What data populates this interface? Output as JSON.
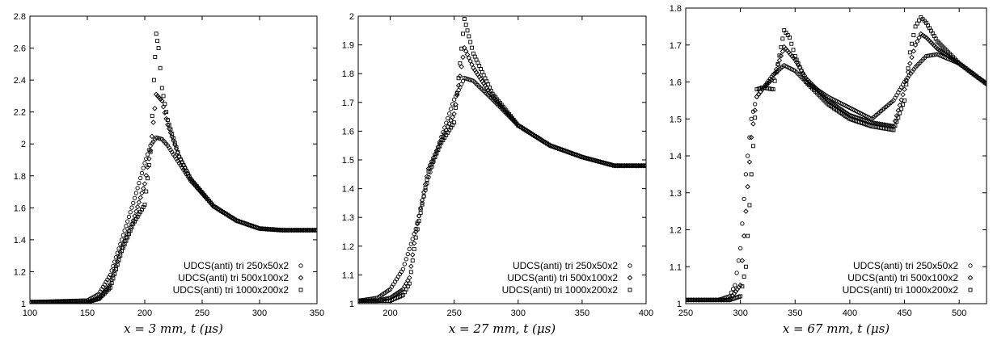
{
  "chart_data": [
    {
      "type": "scatter",
      "xlabel": "x = 3 mm,  t (μs)",
      "xlim": [
        100,
        350
      ],
      "ylim": [
        1,
        2.8
      ],
      "xticks": [
        "100",
        "150",
        "200",
        "250",
        "300",
        "350"
      ],
      "yticks": [
        "1",
        "1.2",
        "1.4",
        "1.6",
        "1.8",
        "2",
        "2.2",
        "2.4",
        "2.6",
        "2.8"
      ],
      "legend_position": "bottom-right",
      "series": [
        {
          "name": "UDCS(anti) tri 250x50x2",
          "marker": "circle",
          "x": [
            100,
            150,
            160,
            170,
            180,
            190,
            200,
            205,
            210,
            215,
            220,
            230,
            240,
            260,
            280,
            300,
            320,
            350
          ],
          "y": [
            1.01,
            1.02,
            1.06,
            1.18,
            1.4,
            1.63,
            1.88,
            1.99,
            2.04,
            2.03,
            1.99,
            1.88,
            1.77,
            1.61,
            1.52,
            1.47,
            1.46,
            1.46
          ]
        },
        {
          "name": "UDCS(anti) tri 500x100x2",
          "marker": "diamond",
          "x": [
            100,
            150,
            160,
            170,
            180,
            190,
            200,
            205,
            210,
            215,
            220,
            230,
            240,
            260,
            280,
            300,
            320,
            350
          ],
          "y": [
            1.01,
            1.01,
            1.03,
            1.12,
            1.35,
            1.52,
            1.75,
            1.96,
            2.31,
            2.27,
            2.12,
            1.92,
            1.78,
            1.61,
            1.52,
            1.47,
            1.46,
            1.46
          ]
        },
        {
          "name": "UDCS(anti) tri 1000x200x2",
          "marker": "square",
          "x": [
            100,
            150,
            160,
            170,
            180,
            190,
            200,
            205,
            208,
            210,
            212,
            215,
            220,
            230,
            240,
            260,
            280,
            300,
            320,
            350
          ],
          "y": [
            1.01,
            1.01,
            1.03,
            1.1,
            1.33,
            1.5,
            1.62,
            1.95,
            2.4,
            2.69,
            2.6,
            2.35,
            2.15,
            1.92,
            1.78,
            1.61,
            1.52,
            1.47,
            1.46,
            1.46
          ]
        }
      ]
    },
    {
      "type": "scatter",
      "xlabel": "x = 27 mm,  t (μs)",
      "xlim": [
        175,
        400
      ],
      "ylim": [
        1,
        2
      ],
      "xticks": [
        "200",
        "250",
        "300",
        "350",
        "400"
      ],
      "yticks": [
        "1",
        "1.1",
        "1.2",
        "1.3",
        "1.4",
        "1.5",
        "1.6",
        "1.7",
        "1.8",
        "1.9",
        "2"
      ],
      "legend_position": "bottom-right",
      "series": [
        {
          "name": "UDCS(anti) tri 250x50x2",
          "marker": "circle",
          "x": [
            175,
            190,
            200,
            210,
            220,
            230,
            240,
            250,
            258,
            265,
            280,
            300,
            325,
            350,
            375,
            400
          ],
          "y": [
            1.01,
            1.02,
            1.05,
            1.12,
            1.26,
            1.44,
            1.58,
            1.71,
            1.785,
            1.775,
            1.71,
            1.62,
            1.55,
            1.51,
            1.48,
            1.48
          ]
        },
        {
          "name": "UDCS(anti) tri 500x100x2",
          "marker": "diamond",
          "x": [
            175,
            190,
            200,
            210,
            215,
            220,
            230,
            240,
            250,
            258,
            265,
            280,
            300,
            325,
            350,
            375,
            400
          ],
          "y": [
            1.01,
            1.01,
            1.02,
            1.05,
            1.09,
            1.25,
            1.47,
            1.57,
            1.66,
            1.89,
            1.82,
            1.72,
            1.62,
            1.55,
            1.51,
            1.48,
            1.48
          ]
        },
        {
          "name": "UDCS(anti) tri 1000x200x2",
          "marker": "square",
          "x": [
            175,
            190,
            200,
            210,
            215,
            220,
            230,
            240,
            250,
            258,
            265,
            280,
            300,
            325,
            350,
            375,
            400
          ],
          "y": [
            1.01,
            1.01,
            1.01,
            1.03,
            1.07,
            1.23,
            1.46,
            1.56,
            1.63,
            1.99,
            1.87,
            1.73,
            1.62,
            1.55,
            1.51,
            1.48,
            1.48
          ]
        }
      ]
    },
    {
      "type": "scatter",
      "xlabel": "x = 67 mm,  t (μs)",
      "xlim": [
        250,
        525
      ],
      "ylim": [
        1,
        1.8
      ],
      "xticks": [
        "250",
        "300",
        "350",
        "400",
        "450",
        "500"
      ],
      "yticks": [
        "1",
        "1.1",
        "1.2",
        "1.3",
        "1.4",
        "1.5",
        "1.6",
        "1.7",
        "1.8"
      ],
      "legend_position": "bottom-right",
      "series": [
        {
          "name": "UDCS(anti) tri 250x50x2",
          "marker": "circle",
          "x": [
            250,
            280,
            290,
            295,
            300,
            305,
            310,
            315,
            320,
            330,
            340,
            350,
            360,
            380,
            400,
            420,
            440,
            450,
            460,
            470,
            480,
            500,
            525
          ],
          "y": [
            1.01,
            1.01,
            1.02,
            1.05,
            1.15,
            1.35,
            1.5,
            1.56,
            1.58,
            1.62,
            1.645,
            1.63,
            1.6,
            1.56,
            1.53,
            1.5,
            1.55,
            1.6,
            1.64,
            1.67,
            1.675,
            1.65,
            1.595
          ]
        },
        {
          "name": "UDCS(anti) tri 500x100x2",
          "marker": "diamond",
          "x": [
            250,
            280,
            290,
            300,
            305,
            310,
            315,
            320,
            330,
            340,
            350,
            360,
            380,
            400,
            420,
            440,
            450,
            455,
            460,
            465,
            470,
            480,
            500,
            525
          ],
          "y": [
            1.01,
            1.01,
            1.01,
            1.05,
            1.25,
            1.45,
            1.56,
            1.58,
            1.61,
            1.695,
            1.66,
            1.61,
            1.55,
            1.51,
            1.49,
            1.48,
            1.58,
            1.65,
            1.7,
            1.73,
            1.72,
            1.69,
            1.65,
            1.595
          ]
        },
        {
          "name": "UDCS(anti) tri 1000x200x2",
          "marker": "square",
          "x": [
            250,
            280,
            290,
            300,
            305,
            310,
            315,
            320,
            330,
            340,
            345,
            350,
            360,
            380,
            400,
            420,
            440,
            450,
            455,
            460,
            465,
            470,
            480,
            500,
            525
          ],
          "y": [
            1.01,
            1.01,
            1.01,
            1.02,
            1.1,
            1.35,
            1.58,
            1.585,
            1.58,
            1.74,
            1.72,
            1.67,
            1.6,
            1.54,
            1.5,
            1.48,
            1.47,
            1.55,
            1.68,
            1.75,
            1.775,
            1.76,
            1.71,
            1.65,
            1.595
          ]
        }
      ]
    }
  ]
}
